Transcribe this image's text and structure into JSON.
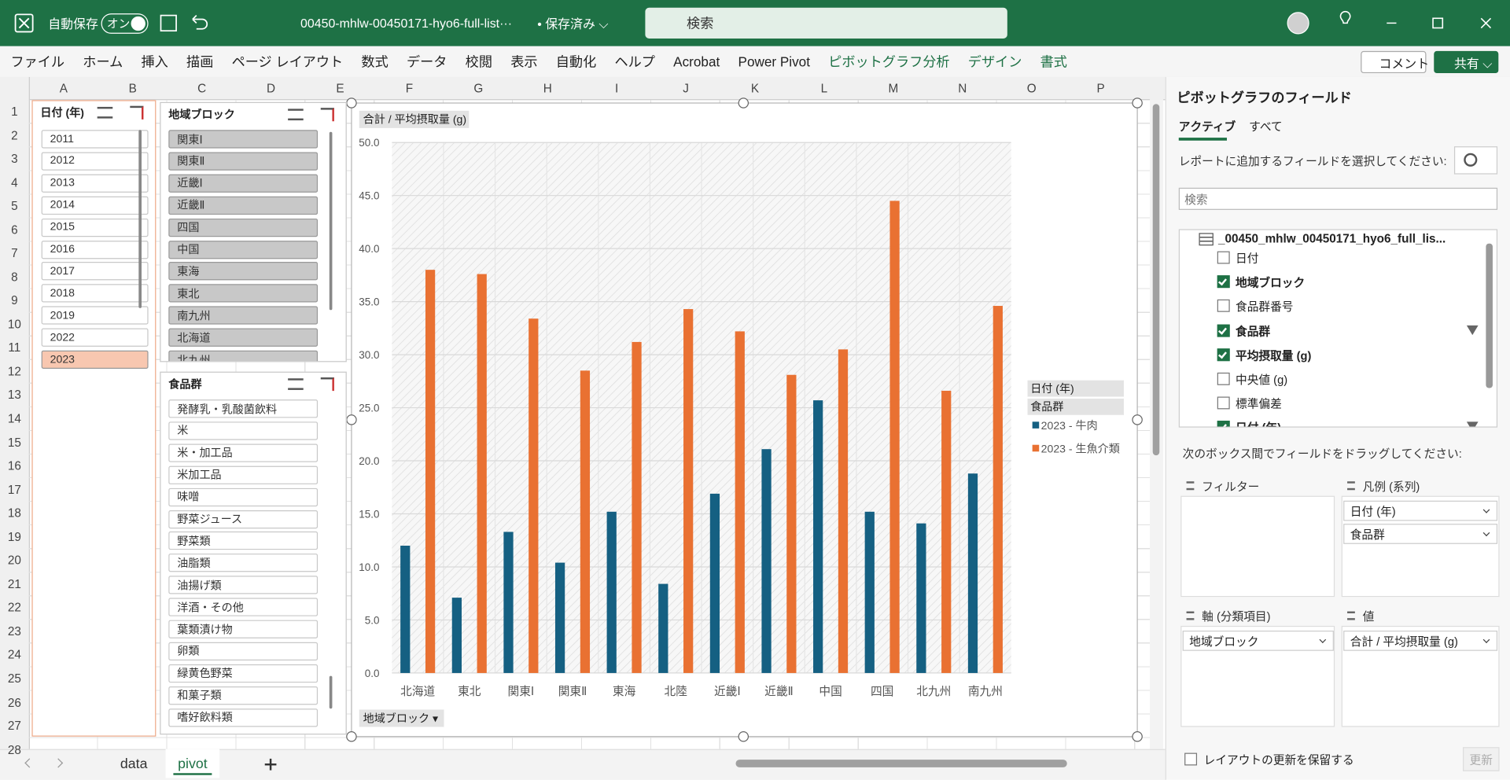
{
  "title_bar": {
    "autosave": "自動保存",
    "autosave_state": "オン",
    "file_name": "00450-mhlw-00450171-hyo6-full-list···",
    "save_status": "• 保存済み ⌵",
    "search": "検索"
  },
  "ribbon": {
    "tabs": [
      "ファイル",
      "ホーム",
      "挿入",
      "描画",
      "ページ レイアウト",
      "数式",
      "データ",
      "校閲",
      "表示",
      "自動化",
      "ヘルプ",
      "Acrobat",
      "Power Pivot"
    ],
    "contextual_tabs": [
      "ピボットグラフ分析",
      "デザイン",
      "書式"
    ],
    "comment": "コメント",
    "share": "共有 ⌵"
  },
  "sheet": {
    "columns": [
      "A",
      "B",
      "C",
      "D",
      "E",
      "F",
      "G",
      "H",
      "I",
      "J",
      "K",
      "L",
      "M",
      "N",
      "O",
      "P"
    ],
    "rows": [
      1,
      2,
      3,
      4,
      5,
      6,
      7,
      8,
      9,
      10,
      11,
      12,
      13,
      14,
      15,
      16,
      17,
      18,
      19,
      20,
      21,
      22,
      23,
      24,
      25,
      26,
      27,
      28
    ]
  },
  "slicers": [
    {
      "title": "日付 (年)",
      "items": [
        "2011",
        "2012",
        "2013",
        "2014",
        "2015",
        "2016",
        "2017",
        "2018",
        "2019",
        "2022",
        "2023"
      ],
      "highlighted": [
        "2023"
      ],
      "highlight_color": "#f8c7b0"
    },
    {
      "title": "地域ブロック",
      "items": [
        "関東Ⅰ",
        "関東Ⅱ",
        "近畿Ⅰ",
        "近畿Ⅱ",
        "四国",
        "中国",
        "東海",
        "東北",
        "南九州",
        "北海道",
        "北九州"
      ],
      "highlighted": [
        "関東Ⅰ",
        "関東Ⅱ",
        "近畿Ⅰ",
        "近畿Ⅱ",
        "四国",
        "中国",
        "東海",
        "東北",
        "南九州",
        "北海道",
        "北九州"
      ],
      "highlight_color": "#c8c8c8"
    },
    {
      "title": "食品群",
      "items": [
        "発酵乳・乳酸菌飲料",
        "米",
        "米・加工品",
        "米加工品",
        "味噌",
        "野菜ジュース",
        "野菜類",
        "油脂類",
        "油揚げ類",
        "洋酒・その他",
        "葉類漬け物",
        "卵類",
        "緑黄色野菜",
        "和菓子類",
        "嗜好飲料類"
      ],
      "highlighted": [],
      "highlight_color": "#c8c8c8"
    }
  ],
  "chart_data": {
    "type": "bar",
    "value_field": "合計 / 平均摂取量 (g)",
    "legend_fields": [
      "日付 (年)",
      "食品群"
    ],
    "axis_field": "地域ブロック ▾",
    "categories": [
      "北海道",
      "東北",
      "関東Ⅰ",
      "関東Ⅱ",
      "東海",
      "北陸",
      "近畿Ⅰ",
      "近畿Ⅱ",
      "中国",
      "四国",
      "北九州",
      "南九州"
    ],
    "series": [
      {
        "name": "2023 - 牛肉",
        "color": "#156082",
        "values": [
          12.0,
          7.1,
          13.3,
          10.4,
          15.2,
          8.4,
          16.9,
          21.1,
          25.7,
          15.2,
          14.1,
          18.8
        ]
      },
      {
        "name": "2023 - 生魚介類",
        "color": "#e97132",
        "values": [
          38.0,
          37.6,
          33.4,
          28.5,
          31.2,
          34.3,
          32.2,
          28.1,
          30.5,
          44.5,
          26.6,
          34.6
        ]
      }
    ],
    "ylim": [
      0,
      50
    ],
    "yticks": [
      {
        "value": 0,
        "label": "0.0"
      },
      {
        "value": 5,
        "label": "5.0"
      },
      {
        "value": 10,
        "label": "10.0"
      },
      {
        "value": 15,
        "label": "15.0"
      },
      {
        "value": 20,
        "label": "20.0"
      },
      {
        "value": 25,
        "label": "25.0"
      },
      {
        "value": 30,
        "label": "30.0"
      },
      {
        "value": 35,
        "label": "35.0"
      },
      {
        "value": 40,
        "label": "40.0"
      },
      {
        "value": 45,
        "label": "45.0"
      },
      {
        "value": 50,
        "label": "50.0"
      }
    ],
    "grid": true,
    "legend": "right"
  },
  "field_pane": {
    "title": "ピボットグラフのフィールド",
    "tabs": [
      "アクティブ",
      "すべて"
    ],
    "prompt": "レポートに追加するフィールドを選択してください:",
    "search": "検索",
    "table": "_00450_mhlw_00450171_hyo6_full_lis...",
    "fields": [
      {
        "name": "日付",
        "checked": false,
        "filtered": false
      },
      {
        "name": "地域ブロック",
        "checked": true,
        "filtered": false
      },
      {
        "name": "食品群番号",
        "checked": false,
        "filtered": false
      },
      {
        "name": "食品群",
        "checked": true,
        "filtered": true
      },
      {
        "name": "平均摂取量 (g)",
        "checked": true,
        "filtered": false
      },
      {
        "name": "中央値 (g)",
        "checked": false,
        "filtered": false
      },
      {
        "name": "標準偏差",
        "checked": false,
        "filtered": false
      },
      {
        "name": "日付 (年)",
        "checked": true,
        "filtered": true
      }
    ],
    "drag_prompt": "次のボックス間でフィールドをドラッグしてください:",
    "areas": [
      {
        "label": "フィルター"
      },
      {
        "label": "凡例 (系列)",
        "items": [
          "日付 (年)",
          "食品群"
        ]
      },
      {
        "label": "軸 (分類項目)",
        "items": [
          "地域ブロック"
        ]
      },
      {
        "label": "値",
        "items": [
          "合計 / 平均摂取量 (g)"
        ]
      }
    ],
    "defer": "レイアウトの更新を保留する",
    "update": "更新"
  },
  "sheet_tabs": {
    "sheets": [
      "data",
      "pivot"
    ],
    "active": "pivot"
  }
}
